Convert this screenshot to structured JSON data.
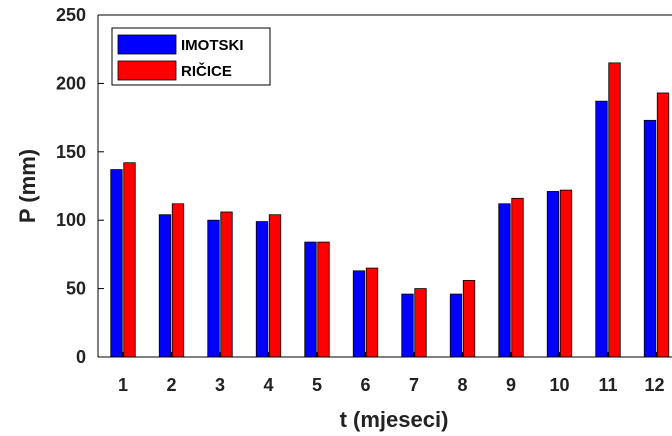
{
  "chart_data": {
    "type": "bar",
    "xlabel": "t (mjeseci)",
    "ylabel": "P (mm)",
    "ylim": [
      0,
      250
    ],
    "yticks": [
      0,
      50,
      100,
      150,
      200,
      250
    ],
    "categories": [
      "1",
      "2",
      "3",
      "4",
      "5",
      "6",
      "7",
      "8",
      "9",
      "10",
      "11",
      "12"
    ],
    "series": [
      {
        "name": "IMOTSKI",
        "color": "#0000ff",
        "values": [
          137,
          104,
          100,
          99,
          84,
          63,
          46,
          46,
          112,
          121,
          187,
          173
        ]
      },
      {
        "name": "RIČICE",
        "color": "#ff0000",
        "values": [
          142,
          112,
          106,
          104,
          84,
          65,
          50,
          56,
          116,
          122,
          215,
          193
        ]
      }
    ],
    "legend": "top-left",
    "grid": false
  }
}
